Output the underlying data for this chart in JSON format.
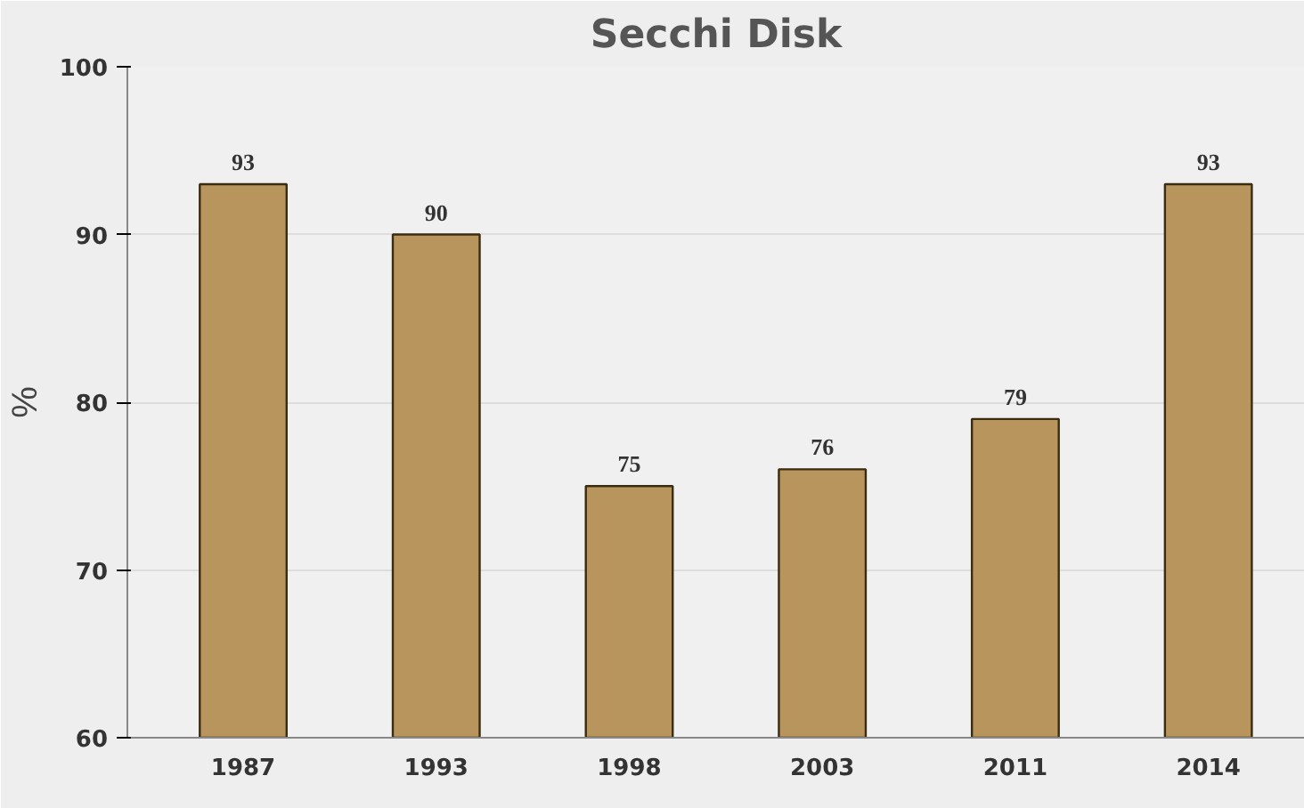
{
  "chart_data": {
    "type": "bar",
    "title": "Secchi Disk",
    "ylabel": "%",
    "categories": [
      "1987",
      "1993",
      "1998",
      "2003",
      "2011",
      "2014"
    ],
    "values": [
      93,
      90,
      75,
      76,
      79,
      93
    ],
    "color": "#b8955c",
    "ylim": [
      60,
      100
    ],
    "yticks": [
      60,
      70,
      80,
      90,
      100
    ],
    "grid": "y",
    "data_labels": true
  }
}
